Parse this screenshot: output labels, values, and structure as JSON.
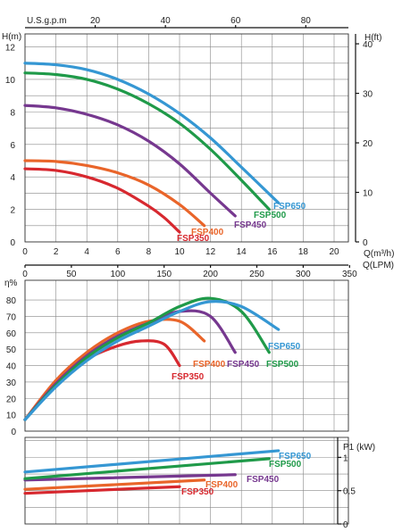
{
  "colors": {
    "FSP350": "#d7282f",
    "FSP400": "#e9652a",
    "FSP450": "#76388f",
    "FSP500": "#1f9a49",
    "FSP650": "#3597d3"
  },
  "chart_data": [
    {
      "type": "line",
      "xlabel": "Q(m³/h)",
      "xlim": [
        0,
        20
      ],
      "xticks": [
        0,
        2,
        4,
        6,
        8,
        10,
        12,
        14,
        16,
        18,
        20
      ],
      "secondary_x_bottom": {
        "label": "Q(LPM)",
        "ticks": [
          0,
          50,
          100,
          150,
          200,
          250,
          300,
          350
        ]
      },
      "secondary_x_top": {
        "label": "U.S.g.p.m",
        "ticks": [
          20,
          40,
          60,
          80
        ]
      },
      "ylabel": "H(m)",
      "ylim": [
        0,
        12.8
      ],
      "yticks": [
        0,
        2,
        4,
        6,
        8,
        10,
        12
      ],
      "secondary_y": {
        "label": "H(ft)",
        "ticks": [
          0,
          10,
          20,
          30,
          40
        ]
      },
      "grid": true,
      "series": [
        {
          "name": "FSP350",
          "x": [
            0,
            2,
            4,
            6,
            8,
            9,
            10
          ],
          "y": [
            4.5,
            4.4,
            4.0,
            3.3,
            2.2,
            1.5,
            0.6
          ]
        },
        {
          "name": "FSP400",
          "x": [
            0,
            2,
            4,
            6,
            8,
            10,
            11.6
          ],
          "y": [
            5.0,
            4.95,
            4.7,
            4.25,
            3.5,
            2.3,
            1.0
          ]
        },
        {
          "name": "FSP450",
          "x": [
            0,
            2,
            4,
            6,
            8,
            10,
            12,
            13.6
          ],
          "y": [
            8.4,
            8.25,
            7.85,
            7.2,
            6.2,
            4.8,
            3.0,
            1.6
          ]
        },
        {
          "name": "FSP500",
          "x": [
            0,
            2,
            4,
            6,
            8,
            10,
            12,
            14,
            15.8
          ],
          "y": [
            10.4,
            10.3,
            10.0,
            9.4,
            8.5,
            7.3,
            5.7,
            3.8,
            2.0
          ]
        },
        {
          "name": "FSP650",
          "x": [
            0,
            2,
            4,
            6,
            8,
            10,
            12,
            14,
            16.4
          ],
          "y": [
            11.0,
            10.9,
            10.6,
            10.0,
            9.1,
            7.9,
            6.4,
            4.6,
            2.4
          ]
        }
      ]
    },
    {
      "type": "line",
      "ylabel": "η%",
      "ylim": [
        0,
        92
      ],
      "yticks": [
        0,
        10,
        20,
        30,
        40,
        50,
        60,
        70,
        80
      ],
      "grid": true,
      "series": [
        {
          "name": "FSP350",
          "x": [
            0,
            2,
            4,
            6,
            7.5,
            9,
            10
          ],
          "y": [
            7,
            30,
            44,
            52,
            55,
            53,
            40
          ]
        },
        {
          "name": "FSP400",
          "x": [
            0,
            2,
            4,
            6,
            8,
            10,
            11.6
          ],
          "y": [
            7,
            31,
            48,
            60,
            67,
            67,
            55
          ]
        },
        {
          "name": "FSP450",
          "x": [
            0,
            2,
            4,
            6,
            8,
            10,
            12,
            13.6
          ],
          "y": [
            7,
            29,
            46,
            58,
            66,
            73,
            70,
            48
          ]
        },
        {
          "name": "FSP500",
          "x": [
            0,
            2,
            4,
            6,
            8,
            10,
            12,
            14,
            15.8
          ],
          "y": [
            7,
            28,
            45,
            57,
            66,
            76,
            81,
            73,
            48
          ]
        },
        {
          "name": "FSP650",
          "x": [
            0,
            2,
            4,
            6,
            8,
            10,
            12,
            14,
            16.4
          ],
          "y": [
            7,
            27,
            43,
            55,
            64,
            73,
            79,
            76,
            62
          ]
        }
      ]
    },
    {
      "type": "line",
      "ylabel": "P1 (kW)",
      "ylim": [
        0,
        1.3
      ],
      "yticks": [
        0,
        0.5,
        1
      ],
      "grid": true,
      "series": [
        {
          "name": "FSP350",
          "x": [
            0,
            10
          ],
          "y": [
            0.46,
            0.56
          ]
        },
        {
          "name": "FSP400",
          "x": [
            0,
            11.6
          ],
          "y": [
            0.52,
            0.66
          ]
        },
        {
          "name": "FSP450",
          "x": [
            0,
            13.6
          ],
          "y": [
            0.66,
            0.74
          ]
        },
        {
          "name": "FSP500",
          "x": [
            0,
            15.8
          ],
          "y": [
            0.68,
            0.98
          ]
        },
        {
          "name": "FSP650",
          "x": [
            0,
            16.4
          ],
          "y": [
            0.78,
            1.1
          ]
        }
      ]
    }
  ],
  "labels": {
    "FSP350": "FSP350",
    "FSP400": "FSP400",
    "FSP450": "FSP450",
    "FSP500": "FSP500",
    "FSP650": "FSP650"
  }
}
